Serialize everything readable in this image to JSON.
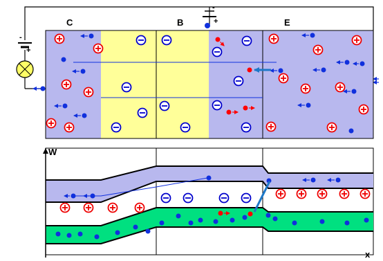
{
  "top_diagram": {
    "region_labels": [
      "C",
      "B",
      "E"
    ],
    "colors": {
      "emitter_collector": "#b8b8ee",
      "base": "#ffff99",
      "donor": "#ee0000",
      "acceptor": "#0000cc",
      "electron": "#1030dd",
      "hole": "#ff0000",
      "current_arrow": "#1e78c8"
    }
  },
  "batteries": {
    "left_minus": "-",
    "left_plus": "+",
    "base_minus": "-",
    "base_plus": "+"
  },
  "band_diagram": {
    "axis_label": "W",
    "x_axis_label": "x",
    "colors": {
      "conduction_band": "#b8b8ee",
      "valence_band": "#00e080"
    }
  },
  "icons": [
    "lamp-icon",
    "battery-icon",
    "arrow-icon"
  ]
}
